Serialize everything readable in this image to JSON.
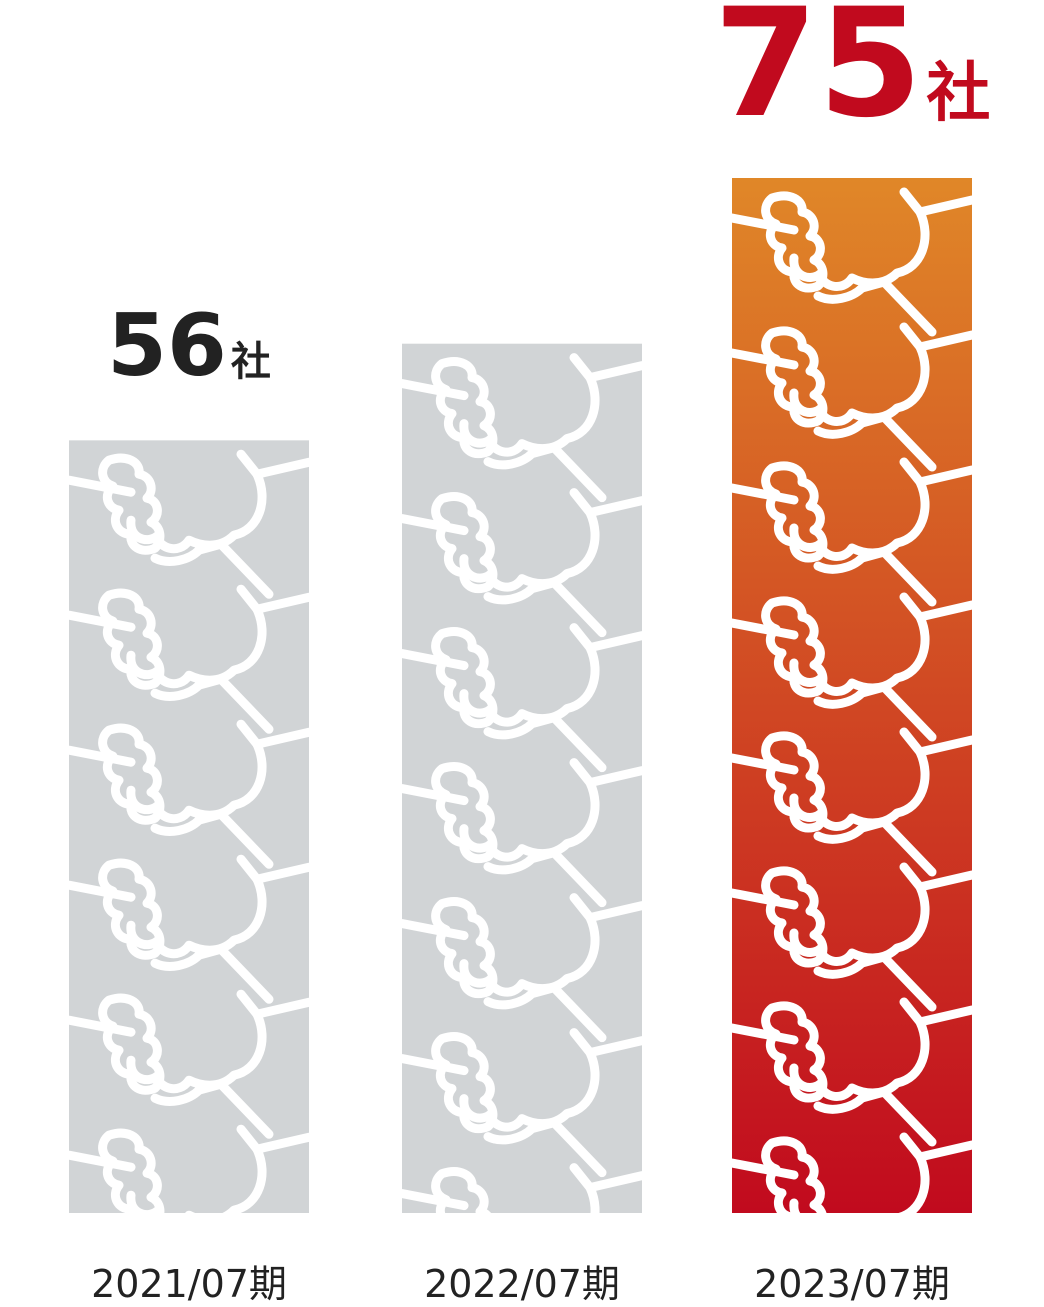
{
  "chart_data": {
    "type": "bar",
    "title": "",
    "xlabel": "",
    "ylabel": "",
    "unit": "社",
    "categories": [
      "2021/07期",
      "2022/07期",
      "2023/07期"
    ],
    "values": [
      56,
      63,
      75
    ],
    "value_labels": [
      "56",
      "",
      "75"
    ],
    "ylim": [
      0,
      75
    ],
    "grid": false,
    "legend": "none",
    "bar_style": "stacked handshake icons",
    "colors": {
      "default_bar": "#d1d4d6",
      "highlight_top": "#e08728",
      "highlight_bottom": "#c10a1e",
      "highlight_label": "#c10a1e",
      "default_label": "#222222"
    },
    "highlight_index": 2
  }
}
